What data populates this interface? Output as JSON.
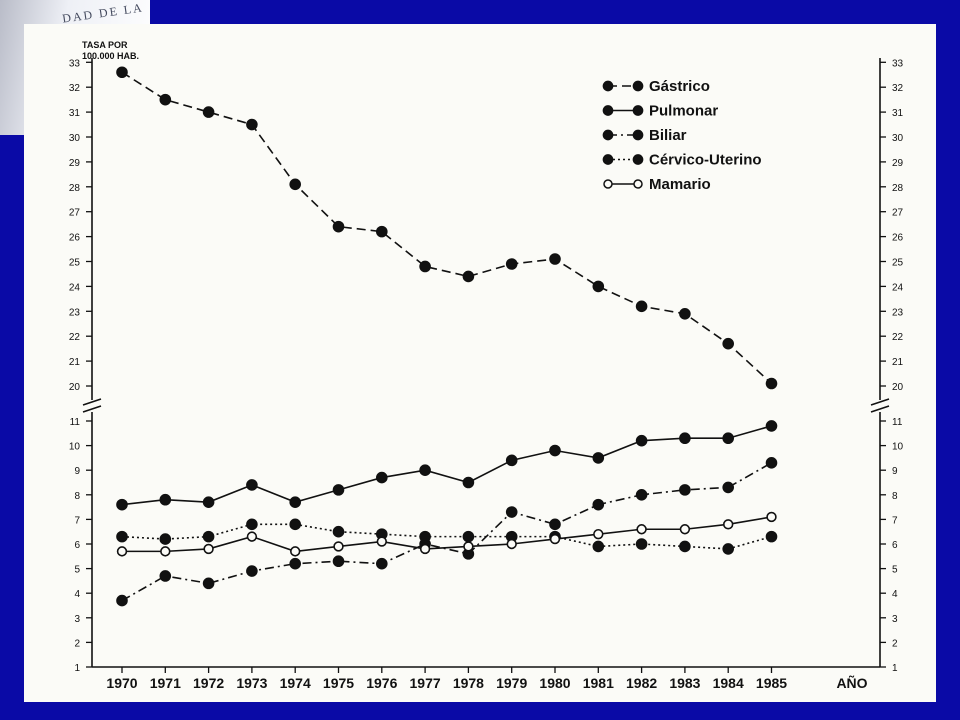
{
  "logo": {
    "text": "DAD DE LA"
  },
  "chart_data": {
    "type": "line",
    "ylabel_lines": [
      "TASA POR",
      "100.000 HAB."
    ],
    "xlabel": "AÑO",
    "categories": [
      "1970",
      "1971",
      "1972",
      "1973",
      "1974",
      "1975",
      "1976",
      "1977",
      "1978",
      "1979",
      "1980",
      "1981",
      "1982",
      "1983",
      "1984",
      "1985"
    ],
    "y_ticks_lower": [
      1,
      2,
      3,
      4,
      5,
      6,
      7,
      8,
      9,
      10,
      11
    ],
    "y_ticks_upper": [
      20,
      21,
      22,
      23,
      24,
      25,
      26,
      27,
      28,
      29,
      30,
      31,
      32,
      33
    ],
    "axis_break": "between 11 and 20",
    "legend_position": "top-right",
    "series": [
      {
        "name": "Gástrico",
        "style": "dashed",
        "marker": "filled",
        "values": [
          32.6,
          31.5,
          31.0,
          30.5,
          28.1,
          26.4,
          26.2,
          24.8,
          24.4,
          24.9,
          25.1,
          24.0,
          23.2,
          22.9,
          21.7,
          20.1
        ]
      },
      {
        "name": "Pulmonar",
        "style": "solid",
        "marker": "filled",
        "values": [
          7.6,
          7.8,
          7.7,
          8.4,
          7.7,
          8.2,
          8.7,
          9.0,
          8.5,
          9.4,
          9.8,
          9.5,
          10.2,
          10.3,
          10.3,
          10.8
        ]
      },
      {
        "name": "Biliar",
        "style": "dashdot",
        "marker": "filled",
        "values": [
          3.7,
          4.7,
          4.4,
          4.9,
          5.2,
          5.3,
          5.2,
          6.0,
          5.6,
          7.3,
          6.8,
          7.6,
          8.0,
          8.2,
          8.3,
          9.3
        ]
      },
      {
        "name": "Cérvico-Uterino",
        "style": "dotted",
        "marker": "filled",
        "values": [
          6.3,
          6.2,
          6.3,
          6.8,
          6.8,
          6.5,
          6.4,
          6.3,
          6.3,
          6.3,
          6.3,
          5.9,
          6.0,
          5.9,
          5.8,
          6.3
        ]
      },
      {
        "name": "Mamario",
        "style": "solid",
        "marker": "open",
        "values": [
          5.7,
          5.7,
          5.8,
          6.3,
          5.7,
          5.9,
          6.1,
          5.8,
          5.9,
          6.0,
          6.2,
          6.4,
          6.6,
          6.6,
          6.8,
          7.1
        ]
      }
    ]
  }
}
